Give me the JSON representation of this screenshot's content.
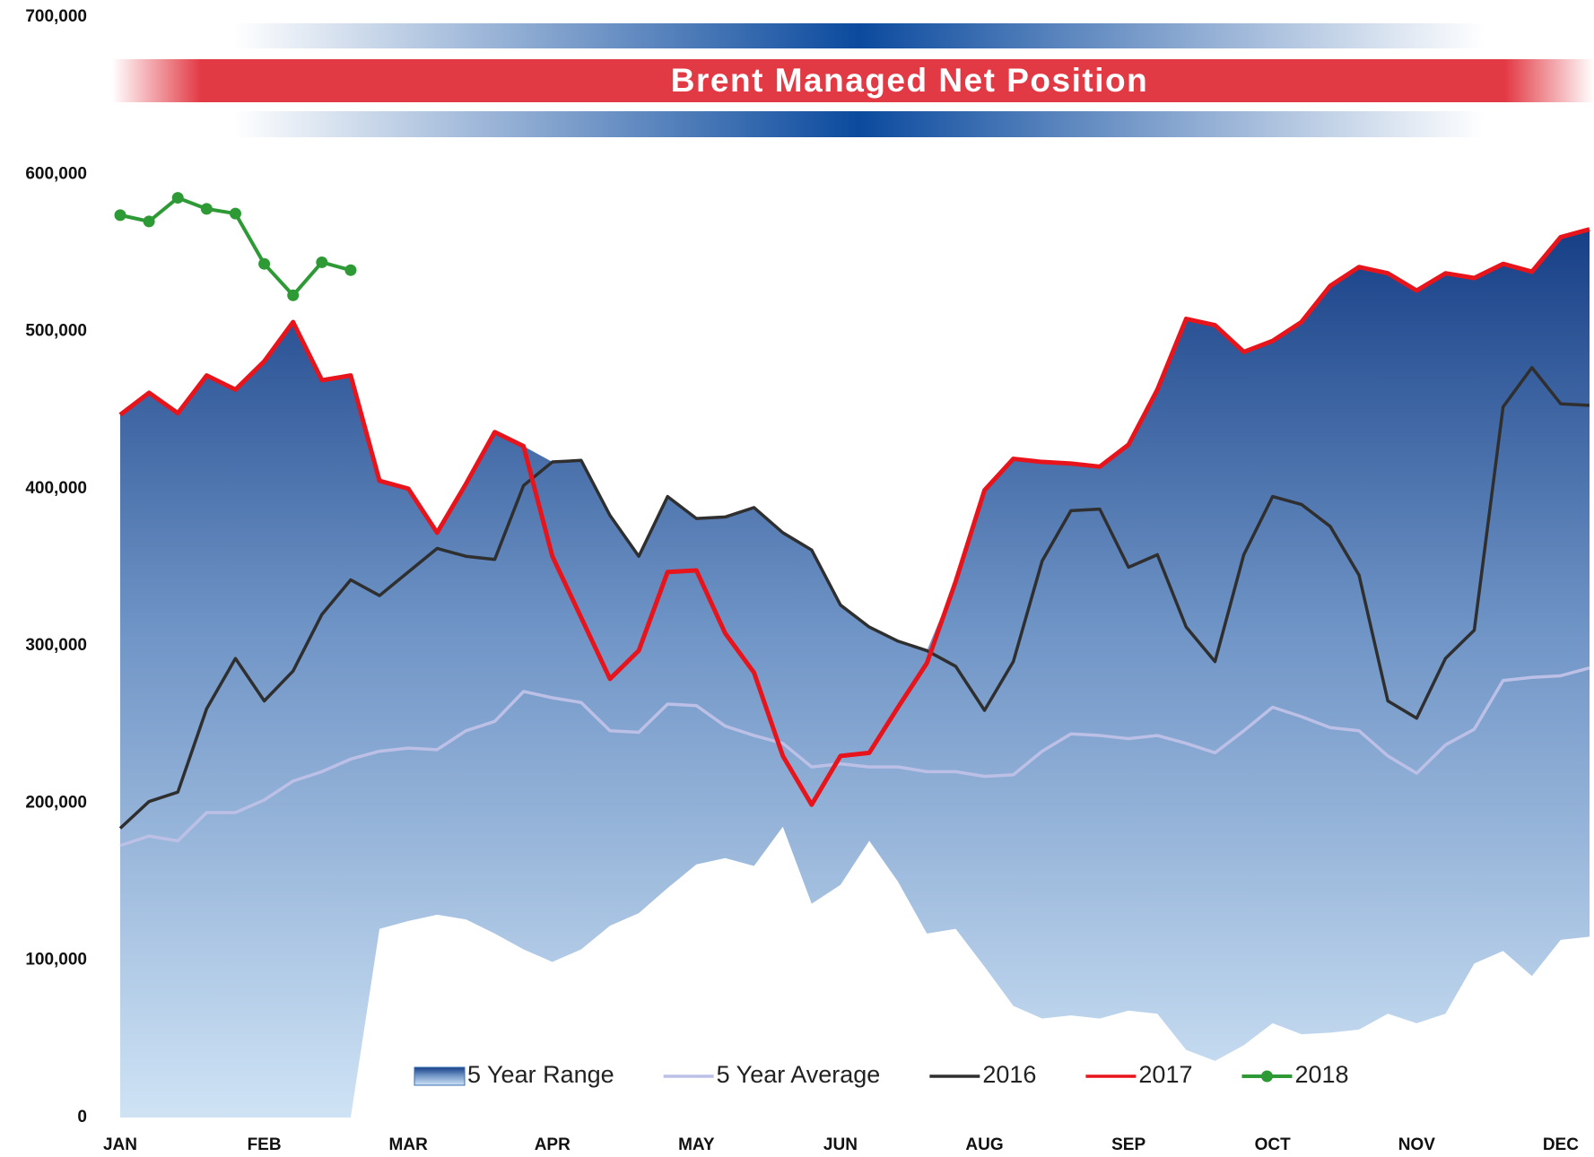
{
  "chart_data": {
    "type": "line",
    "title": "Brent Managed Net Position",
    "categories": [
      "JAN",
      null,
      null,
      null,
      null,
      "FEB",
      null,
      null,
      null,
      null,
      "MAR",
      null,
      null,
      null,
      null,
      "APR",
      null,
      null,
      null,
      null,
      "MAY",
      null,
      null,
      null,
      null,
      "JUN",
      null,
      null,
      null,
      null,
      "AUG",
      null,
      null,
      null,
      null,
      "SEP",
      null,
      null,
      null,
      null,
      "OCT",
      null,
      null,
      null,
      null,
      "NOV",
      null,
      null,
      null,
      null,
      "DEC",
      null
    ],
    "ylim": [
      0,
      700000
    ],
    "yticks": [
      0,
      {
        "value": 100000,
        "label": "100,000"
      },
      {
        "value": 200000,
        "label": "200,000"
      },
      {
        "value": 300000,
        "label": "300,000"
      },
      {
        "value": 400000,
        "label": "400,000"
      },
      {
        "value": 500000,
        "label": "500,000"
      },
      {
        "value": 600000,
        "label": "600,000"
      },
      {
        "value": 700000,
        "label": "700,000"
      }
    ],
    "grid": false,
    "legend": "bottom",
    "series": [
      {
        "name": "5 Year Range",
        "type": "range",
        "color": "#1f4f94",
        "low": [
          0,
          0,
          0,
          0,
          0,
          0,
          0,
          0,
          0,
          120000,
          125000,
          129000,
          126000,
          117000,
          107000,
          99000,
          107000,
          122000,
          130000,
          146000,
          161000,
          165000,
          160000,
          185000,
          136000,
          148000,
          176000,
          150000,
          117000,
          120000,
          96000,
          71000,
          63000,
          65000,
          63000,
          68000,
          66000,
          43000,
          36000,
          46000,
          60000,
          53000,
          54000,
          56000,
          66000,
          60000,
          66000,
          98000,
          106000,
          90000,
          113000,
          115000
        ],
        "high": [
          447000,
          461000,
          448000,
          472000,
          463000,
          481000,
          506000,
          469000,
          472000,
          405000,
          400000,
          372000,
          403000,
          436000,
          427000,
          417000,
          418000,
          383000,
          357000,
          395000,
          381000,
          382000,
          388000,
          372000,
          361000,
          326000,
          312000,
          303000,
          297000,
          341000,
          399000,
          419000,
          417000,
          416000,
          414000,
          428000,
          463000,
          508000,
          504000,
          487000,
          494000,
          506000,
          529000,
          541000,
          537000,
          526000,
          537000,
          534000,
          543000,
          538000,
          560000,
          565000
        ]
      },
      {
        "name": "5 Year Average",
        "type": "line",
        "color": "#bcc0e6",
        "values": [
          173000,
          179000,
          176000,
          194000,
          194000,
          202000,
          214000,
          220000,
          228000,
          233000,
          235000,
          234000,
          246000,
          252000,
          271000,
          267000,
          264000,
          246000,
          245000,
          263000,
          262000,
          249000,
          243000,
          238000,
          223000,
          225000,
          223000,
          223000,
          220000,
          220000,
          217000,
          218000,
          233000,
          244000,
          243000,
          241000,
          243000,
          238000,
          232000,
          246000,
          261000,
          255000,
          248000,
          246000,
          230000,
          219000,
          237000,
          247000,
          278000,
          280000,
          281000,
          286000
        ]
      },
      {
        "name": "2016",
        "type": "line",
        "color": "#2f2f2f",
        "values": [
          184000,
          201000,
          207000,
          260000,
          292000,
          265000,
          284000,
          320000,
          342000,
          332000,
          347000,
          362000,
          357000,
          355000,
          402000,
          417000,
          418000,
          383000,
          357000,
          395000,
          381000,
          382000,
          388000,
          372000,
          361000,
          326000,
          312000,
          303000,
          297000,
          287000,
          259000,
          290000,
          354000,
          386000,
          387000,
          350000,
          358000,
          312000,
          290000,
          358000,
          395000,
          390000,
          376000,
          345000,
          265000,
          254000,
          292000,
          310000,
          452000,
          477000,
          454000,
          453000
        ]
      },
      {
        "name": "2017",
        "type": "line",
        "color": "#e8141b",
        "values": [
          447000,
          461000,
          448000,
          472000,
          463000,
          481000,
          506000,
          469000,
          472000,
          405000,
          400000,
          372000,
          403000,
          436000,
          427000,
          357000,
          318000,
          279000,
          297000,
          347000,
          348000,
          308000,
          283000,
          230000,
          199000,
          230000,
          232000,
          261000,
          289000,
          341000,
          399000,
          419000,
          417000,
          416000,
          414000,
          428000,
          463000,
          508000,
          504000,
          487000,
          494000,
          506000,
          529000,
          541000,
          537000,
          526000,
          537000,
          534000,
          543000,
          538000,
          560000,
          565000
        ]
      },
      {
        "name": "2018",
        "type": "line",
        "color": "#2e9a35",
        "markers": true,
        "values": [
          574000,
          570000,
          585000,
          578000,
          575000,
          543000,
          523000,
          544000,
          539000,
          null,
          null,
          null,
          null,
          null,
          null,
          null,
          null,
          null,
          null,
          null,
          null,
          null,
          null,
          null,
          null,
          null,
          null,
          null,
          null,
          null,
          null,
          null,
          null,
          null,
          null,
          null,
          null,
          null,
          null,
          null,
          null,
          null,
          null,
          null,
          null,
          null,
          null,
          null,
          null,
          null,
          null,
          null
        ]
      }
    ]
  }
}
